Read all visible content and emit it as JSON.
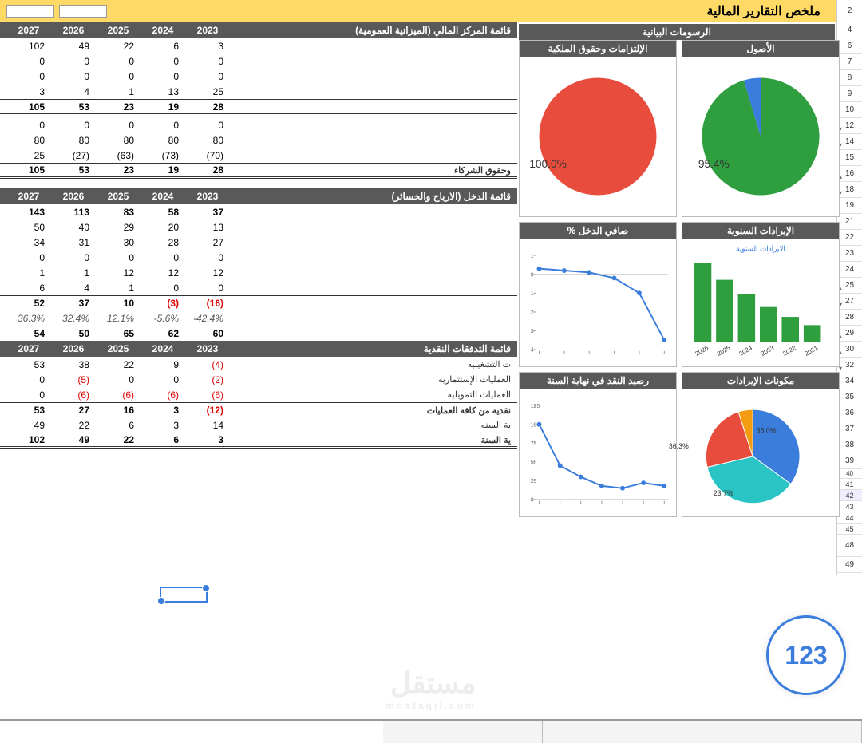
{
  "page_title": "ملخص التقارير المالية",
  "row_numbers": [
    2,
    4,
    6,
    7,
    8,
    9,
    10,
    12,
    14,
    15,
    16,
    18,
    19,
    21,
    22,
    23,
    24,
    25,
    27,
    28,
    29,
    30,
    32,
    34,
    35,
    36,
    37,
    38,
    39,
    40,
    41,
    42,
    43,
    44,
    45,
    48,
    49
  ],
  "years": [
    "2027",
    "2026",
    "2025",
    "2024",
    "2023"
  ],
  "balance_sheet": {
    "title": "قائمة المركز المالي (الميزانية العمومية)",
    "rows": [
      {
        "v": [
          "102",
          "49",
          "22",
          "6",
          "3"
        ]
      },
      {
        "v": [
          "0",
          "0",
          "0",
          "0",
          "0"
        ]
      },
      {
        "v": [
          "0",
          "0",
          "0",
          "0",
          "0"
        ]
      },
      {
        "v": [
          "3",
          "4",
          "1",
          "13",
          "25"
        ]
      }
    ],
    "subtotal1": {
      "v": [
        "105",
        "53",
        "23",
        "19",
        "28"
      ]
    },
    "rows2": [
      {
        "v": [
          "0",
          "0",
          "0",
          "0",
          "0"
        ]
      },
      {
        "v": [
          "80",
          "80",
          "80",
          "80",
          "80"
        ]
      },
      {
        "v": [
          "25",
          "(27)",
          "(63)",
          "(73)",
          "(70)"
        ]
      }
    ],
    "equity_label": "وحقوق الشركاء",
    "subtotal2": {
      "v": [
        "105",
        "53",
        "23",
        "19",
        "28"
      ]
    }
  },
  "income": {
    "title": "قائمة الدخل (الارباح والخسائر)",
    "rows": [
      {
        "v": [
          "143",
          "113",
          "83",
          "58",
          "37"
        ],
        "bold": true
      },
      {
        "v": [
          "50",
          "40",
          "29",
          "20",
          "13"
        ]
      },
      {
        "v": [
          "34",
          "31",
          "30",
          "28",
          "27"
        ]
      },
      {
        "v": [
          "0",
          "0",
          "0",
          "0",
          "0"
        ]
      },
      {
        "v": [
          "1",
          "1",
          "12",
          "12",
          "12"
        ]
      },
      {
        "v": [
          "6",
          "4",
          "1",
          "0",
          "0"
        ]
      }
    ],
    "net": {
      "v": [
        "52",
        "37",
        "10",
        "(3)",
        "(16)"
      ],
      "neg": [
        false,
        false,
        false,
        true,
        true
      ]
    },
    "pct": {
      "v": [
        "36.3%",
        "32.4%",
        "12.1%",
        "-5.6%",
        "-42.4%"
      ]
    },
    "last": {
      "v": [
        "54",
        "50",
        "65",
        "62",
        "60"
      ]
    }
  },
  "cashflow": {
    "title": "قائمة التدفقات النقدية",
    "rows": [
      {
        "lbl": "ت التشغيليه",
        "v": [
          "53",
          "38",
          "22",
          "9",
          "(4)"
        ],
        "neg": [
          false,
          false,
          false,
          false,
          true
        ]
      },
      {
        "lbl": "العمليات الإستثماريه",
        "v": [
          "0",
          "(5)",
          "0",
          "0",
          "(2)"
        ],
        "neg": [
          false,
          true,
          false,
          false,
          true
        ]
      },
      {
        "lbl": "العمليات التمويليه",
        "v": [
          "0",
          "(6)",
          "(6)",
          "(6)",
          "(6)"
        ],
        "neg": [
          false,
          true,
          true,
          true,
          true
        ]
      }
    ],
    "net": {
      "lbl": "نقدية من كافة العمليات",
      "v": [
        "53",
        "27",
        "16",
        "3",
        "(12)"
      ],
      "neg": [
        false,
        false,
        false,
        false,
        true
      ]
    },
    "begin": {
      "lbl": "ية السنه",
      "v": [
        "49",
        "22",
        "6",
        "3",
        "14"
      ]
    },
    "end": {
      "lbl": "ية السنة",
      "v": [
        "102",
        "49",
        "22",
        "6",
        "3"
      ]
    }
  },
  "charts": {
    "header": "الرسومات البيانية",
    "assets": {
      "title": "الأصول",
      "type": "pie",
      "slices": [
        {
          "pct": 95.4,
          "color": "#2e9e3f"
        },
        {
          "pct": 4.6,
          "color": "#3b7ddd"
        }
      ],
      "label": "95.4%"
    },
    "liab": {
      "title": "الإلتزامات وحقوق الملكية",
      "type": "pie",
      "slices": [
        {
          "pct": 100,
          "color": "#e74c3c"
        }
      ],
      "label": "100.0%"
    },
    "revenue": {
      "title": "الإيرادات السنوية",
      "type": "bar",
      "subtitle": "الايرادات السنوية",
      "categories": [
        "2026",
        "2025",
        "2024",
        "2023",
        "2022",
        "2021"
      ],
      "values": [
        95,
        75,
        58,
        42,
        30,
        20
      ],
      "color": "#2e9e3f"
    },
    "netincome": {
      "title": "صافي الدخل %",
      "type": "line",
      "y_ticks": [
        1,
        0,
        -1,
        -2,
        -3,
        -4
      ],
      "points": [
        0.3,
        0.2,
        0.1,
        -0.2,
        -1.0,
        -3.5
      ],
      "color": "#3b7ddd"
    },
    "components": {
      "title": "مكونات الإيرادات",
      "type": "pie",
      "slices": [
        {
          "pct": 35.0,
          "color": "#3b7ddd"
        },
        {
          "pct": 36.3,
          "color": "#2bc4c4"
        },
        {
          "pct": 23.7,
          "color": "#e74c3c"
        },
        {
          "pct": 5.0,
          "color": "#f39c12"
        }
      ],
      "labels": [
        "35.0%",
        "36.3%",
        "23.7%"
      ]
    },
    "cashend": {
      "title": "رصيد النقد في نهاية السنة",
      "type": "line",
      "y_ticks": [
        125,
        100,
        75,
        50,
        25,
        0
      ],
      "points": [
        100,
        45,
        30,
        18,
        15,
        22,
        18
      ],
      "color": "#3b7ddd"
    }
  },
  "badge": "123",
  "watermark": "مستقل",
  "watermark_sub": "mostaqil.com"
}
